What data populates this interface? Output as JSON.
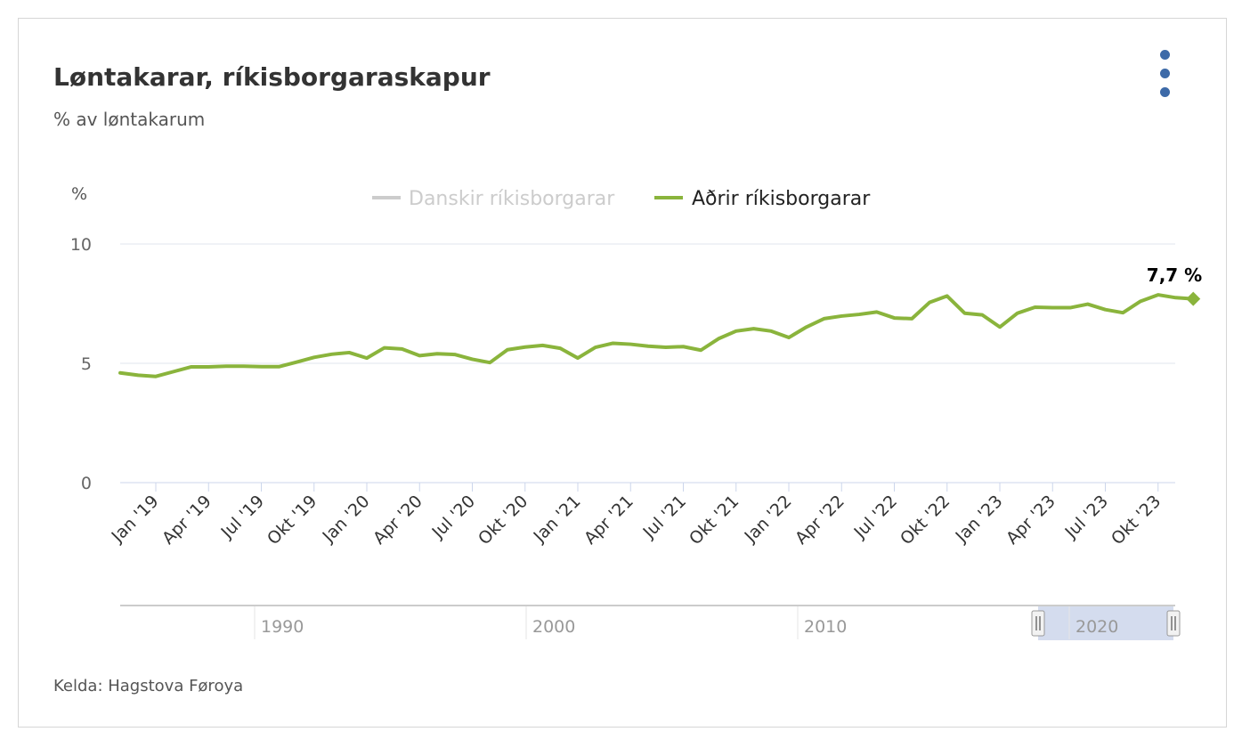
{
  "title": "Løntakarar, ríkisborgaraskapur",
  "subtitle": "% av løntakarum",
  "source": "Kelda: Hagstova Føroya",
  "menu": {
    "icon": "more-vertical-icon"
  },
  "colors": {
    "series_active": "#8ab43c",
    "series_hidden": "#cccccc",
    "grid": "#e1e6ec",
    "navigator_mask": "#ccd6eb",
    "menu": "#3d6aa8"
  },
  "chart_data": {
    "type": "line",
    "ylabel": "%",
    "ylim": [
      0,
      10
    ],
    "yticks": [
      "0",
      "5",
      "10"
    ],
    "x_tick_labels": [
      "Jan '19",
      "Apr '19",
      "Jul '19",
      "Okt '19",
      "Jan '20",
      "Apr '20",
      "Jul '20",
      "Okt '20",
      "Jan '21",
      "Apr '21",
      "Jul '21",
      "Okt '21",
      "Jan '22",
      "Apr '22",
      "Jul '22",
      "Okt '22",
      "Jan '23",
      "Apr '23",
      "Jul '23",
      "Okt '23"
    ],
    "legend": {
      "position": "top-center"
    },
    "series": [
      {
        "name": "Danskir ríkisborgarar",
        "visible": false,
        "values": []
      },
      {
        "name": "Aðrir ríkisborgarar",
        "visible": true,
        "x": [
          "2018-11",
          "2018-12",
          "2019-01",
          "2019-02",
          "2019-03",
          "2019-04",
          "2019-05",
          "2019-06",
          "2019-07",
          "2019-08",
          "2019-09",
          "2019-10",
          "2019-11",
          "2019-12",
          "2020-01",
          "2020-02",
          "2020-03",
          "2020-04",
          "2020-05",
          "2020-06",
          "2020-07",
          "2020-08",
          "2020-09",
          "2020-10",
          "2020-11",
          "2020-12",
          "2021-01",
          "2021-02",
          "2021-03",
          "2021-04",
          "2021-05",
          "2021-06",
          "2021-07",
          "2021-08",
          "2021-09",
          "2021-10",
          "2021-11",
          "2021-12",
          "2022-01",
          "2022-02",
          "2022-03",
          "2022-04",
          "2022-05",
          "2022-06",
          "2022-07",
          "2022-08",
          "2022-09",
          "2022-10",
          "2022-11",
          "2022-12",
          "2023-01",
          "2023-02",
          "2023-03",
          "2023-04",
          "2023-05",
          "2023-06",
          "2023-07",
          "2023-08",
          "2023-09",
          "2023-10",
          "2023-11",
          "2023-12"
        ],
        "values": [
          4.6,
          4.5,
          4.45,
          4.65,
          4.85,
          4.85,
          4.88,
          4.88,
          4.86,
          4.86,
          5.05,
          5.25,
          5.38,
          5.45,
          5.22,
          5.65,
          5.6,
          5.32,
          5.4,
          5.37,
          5.17,
          5.03,
          5.57,
          5.68,
          5.75,
          5.63,
          5.22,
          5.67,
          5.84,
          5.8,
          5.72,
          5.67,
          5.7,
          5.55,
          6.03,
          6.35,
          6.45,
          6.35,
          6.08,
          6.52,
          6.87,
          6.98,
          7.05,
          7.15,
          6.9,
          6.87,
          7.55,
          7.82,
          7.1,
          7.03,
          6.52,
          7.1,
          7.35,
          7.33,
          7.33,
          7.48,
          7.25,
          7.12,
          7.6,
          7.87,
          7.75,
          7.7
        ]
      }
    ],
    "last_point_label": "7,7 %",
    "navigator": {
      "labels": [
        "1990",
        "2000",
        "2010",
        "2020"
      ],
      "range_selected": [
        "2019-01",
        "2023-12"
      ]
    }
  }
}
